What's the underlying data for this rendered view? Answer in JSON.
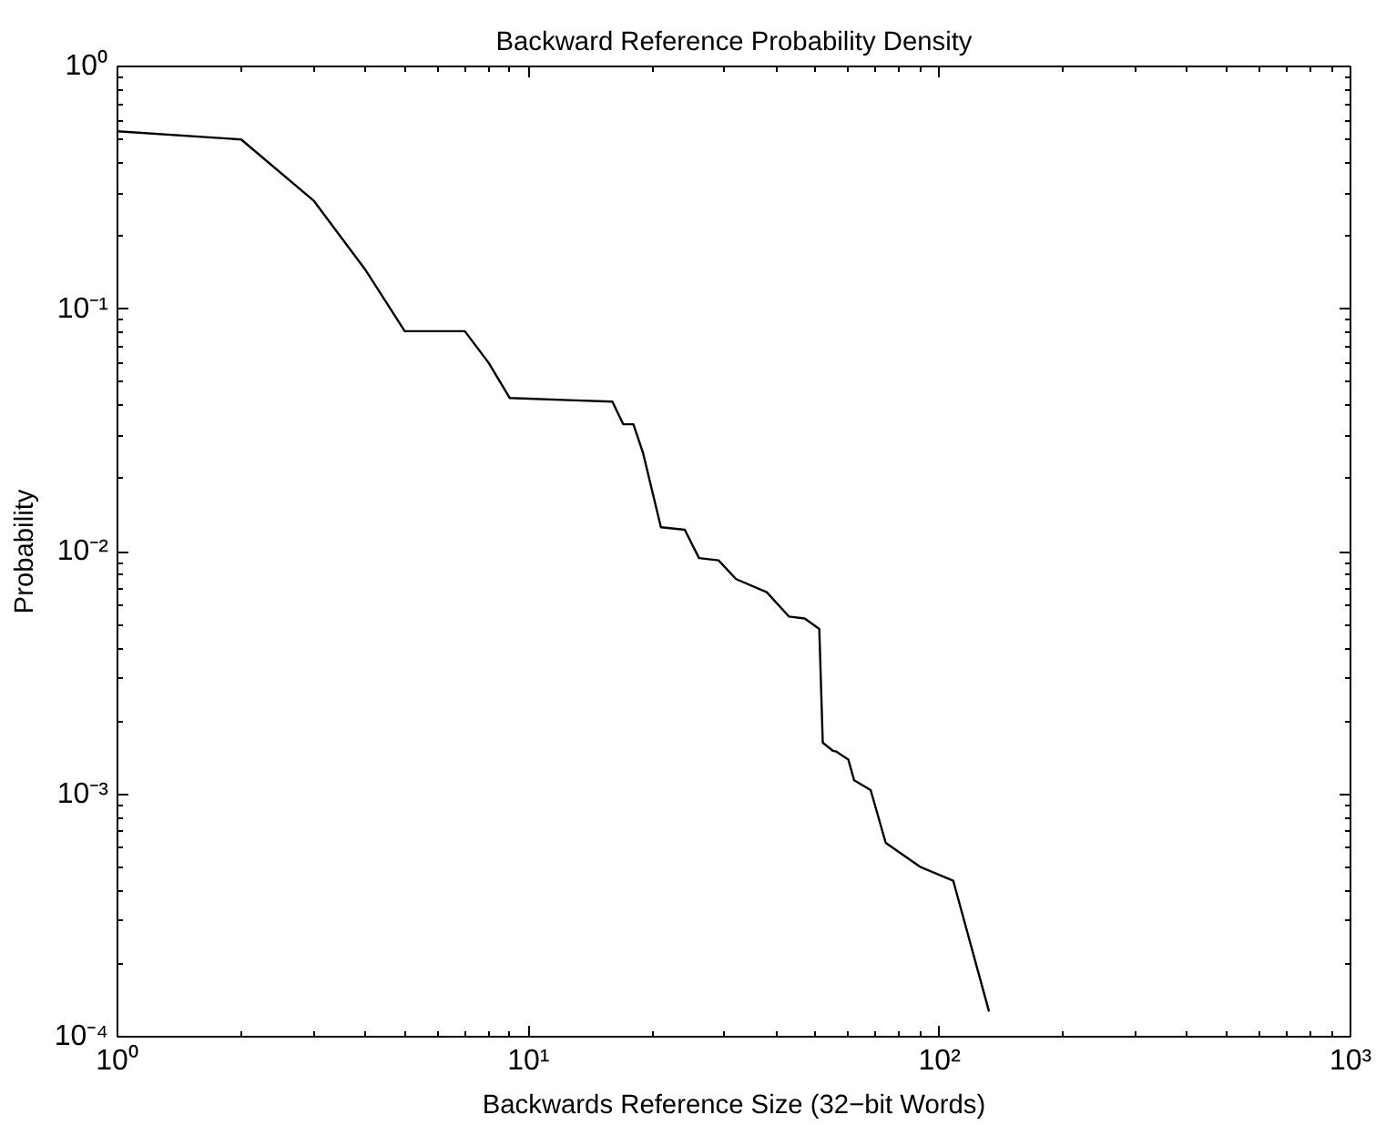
{
  "chart_data": {
    "type": "line",
    "title": "Backward Reference Probability Density",
    "xlabel": "Backwards Reference Size (32−bit Words)",
    "ylabel": "Probability",
    "log": "xy",
    "grid": false,
    "marker": "none",
    "line_style": "solid",
    "xlim": [
      1,
      1000
    ],
    "ylim": [
      0.0001,
      1
    ],
    "xticks": [
      {
        "value": 1,
        "label": "10⁰"
      },
      {
        "value": 10,
        "label": "10¹"
      },
      {
        "value": 100,
        "label": "10²"
      },
      {
        "value": 1000,
        "label": "10³"
      }
    ],
    "yticks": [
      {
        "value": 0.0001,
        "label": "10⁻⁴"
      },
      {
        "value": 0.001,
        "label": "10⁻³"
      },
      {
        "value": 0.01,
        "label": "10⁻²"
      },
      {
        "value": 0.1,
        "label": "10⁻¹"
      },
      {
        "value": 1,
        "label": "10⁰"
      }
    ],
    "x": [
      1,
      2,
      3,
      4,
      5,
      7,
      8,
      9,
      13,
      16,
      17,
      18,
      19,
      21,
      24,
      26,
      29,
      32,
      38,
      43,
      47,
      51,
      52,
      55,
      56,
      60,
      62,
      68,
      74,
      90,
      108,
      132
    ],
    "series": [
      {
        "color": "#000000",
        "values": [
          0.54,
          0.5,
          0.28,
          0.146,
          0.081,
          0.081,
          0.06,
          0.043,
          0.042,
          0.0415,
          0.0335,
          0.0335,
          0.0255,
          0.0126,
          0.0123,
          0.0094,
          0.0092,
          0.0077,
          0.0068,
          0.0054,
          0.0053,
          0.0048,
          0.00163,
          0.00151,
          0.0015,
          0.00139,
          0.00114,
          0.00104,
          0.00063,
          0.0005,
          0.00044,
          0.000127
        ]
      }
    ]
  }
}
